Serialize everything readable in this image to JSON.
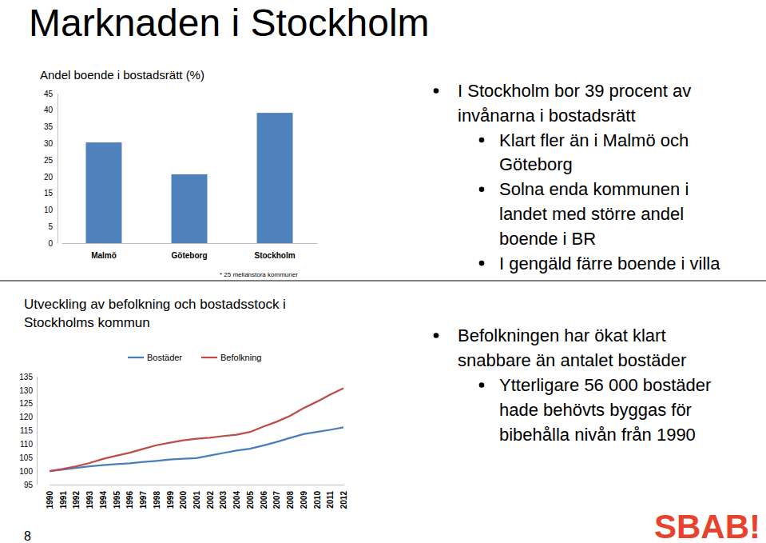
{
  "title": "Marknaden i Stockholm",
  "page_number": 8,
  "logo": "SBAB!",
  "chart_data": [
    {
      "type": "bar",
      "title": "Andel boende i bostadsrätt (%)",
      "categories": [
        "Malmö",
        "Göteborg",
        "Stockholm"
      ],
      "values": [
        30.3,
        20.7,
        39.2
      ],
      "color": "#4f81bd",
      "ylim": [
        0,
        45
      ],
      "yticks": [
        0,
        5,
        10,
        15,
        20,
        25,
        30,
        35,
        40,
        45
      ],
      "annotations": [
        "* 25 mellanstora kommuner"
      ]
    },
    {
      "type": "line",
      "title": "Utveckling av befolkning och bostadsstock i Stockholms kommun",
      "categories": [
        "1990",
        "1991",
        "1992",
        "1993",
        "1994",
        "1995",
        "1996",
        "1997",
        "1998",
        "1999",
        "2000",
        "2001",
        "2002",
        "2003",
        "2004",
        "2005",
        "2006",
        "2007",
        "2008",
        "2009",
        "2010",
        "2011",
        "2012"
      ],
      "series": [
        {
          "name": "Bostäder",
          "color": "#4a7ebb",
          "values": [
            100,
            100.6,
            101.2,
            101.8,
            102.2,
            102.6,
            102.9,
            103.4,
            103.8,
            104.3,
            104.6,
            104.8,
            105.8,
            106.7,
            107.6,
            108.3,
            109.5,
            110.8,
            112.3,
            113.7,
            114.5,
            115.3,
            116.2
          ]
        },
        {
          "name": "Befolkning",
          "color": "#be4b48",
          "values": [
            100,
            100.8,
            101.8,
            103,
            104.5,
            105.7,
            106.8,
            108.2,
            109.6,
            110.5,
            111.4,
            112,
            112.4,
            113,
            113.5,
            114.5,
            116.5,
            118.3,
            120.5,
            123.3,
            125.7,
            128.3,
            130.7
          ]
        }
      ],
      "ylim": [
        95,
        135
      ],
      "yticks": [
        95,
        100,
        105,
        110,
        115,
        120,
        125,
        130,
        135
      ],
      "legend": "top"
    }
  ],
  "bullets_top": [
    {
      "lines": [
        "I Stockholm bor 39 procent av",
        "invånarna i bostadsrätt"
      ],
      "sub": [
        {
          "lines": [
            "Klart fler än i Malmö och",
            "Göteborg"
          ]
        },
        {
          "lines": [
            "Solna enda kommunen i",
            "landet med större andel",
            "boende i BR"
          ]
        },
        {
          "lines": [
            "I gengäld färre boende i villa"
          ]
        }
      ]
    }
  ],
  "bullets_bottom": [
    {
      "lines": [
        "Befolkningen har ökat klart",
        "snabbare än antalet bostäder"
      ],
      "sub": [
        {
          "lines": [
            "Ytterligare 56 000 bostäder",
            "hade behövts byggas för",
            "bibehålla nivån från 1990"
          ]
        }
      ]
    }
  ]
}
